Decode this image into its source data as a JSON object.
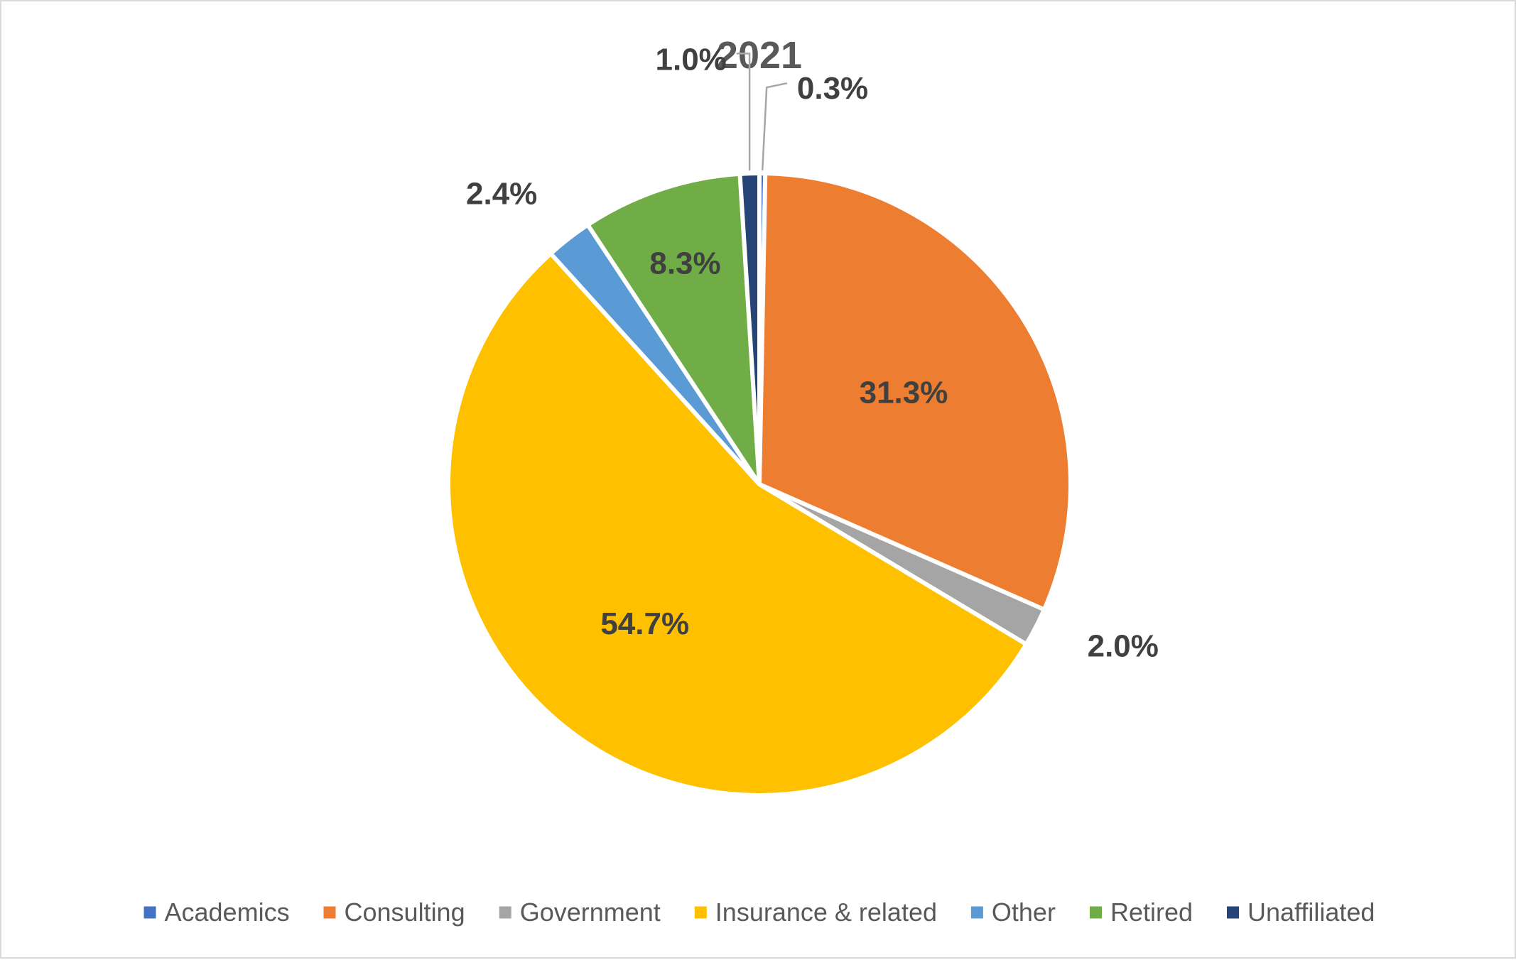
{
  "chart_data": {
    "type": "pie",
    "title": "2021",
    "legend_position": "bottom",
    "categories": [
      "Academics",
      "Consulting",
      "Government",
      "Insurance & related",
      "Other",
      "Retired",
      "Unaffiliated"
    ],
    "values": [
      0.3,
      31.3,
      2.0,
      54.7,
      2.4,
      8.3,
      1.0
    ],
    "data_labels": [
      "0.3%",
      "31.3%",
      "2.0%",
      "54.7%",
      "2.4%",
      "8.3%",
      "1.0%"
    ],
    "colors": [
      "#4472c4",
      "#ed7d31",
      "#a5a5a5",
      "#ffc000",
      "#5b9bd5",
      "#70ad47",
      "#264478"
    ],
    "start_angle_deg": 0,
    "direction": "clockwise"
  }
}
